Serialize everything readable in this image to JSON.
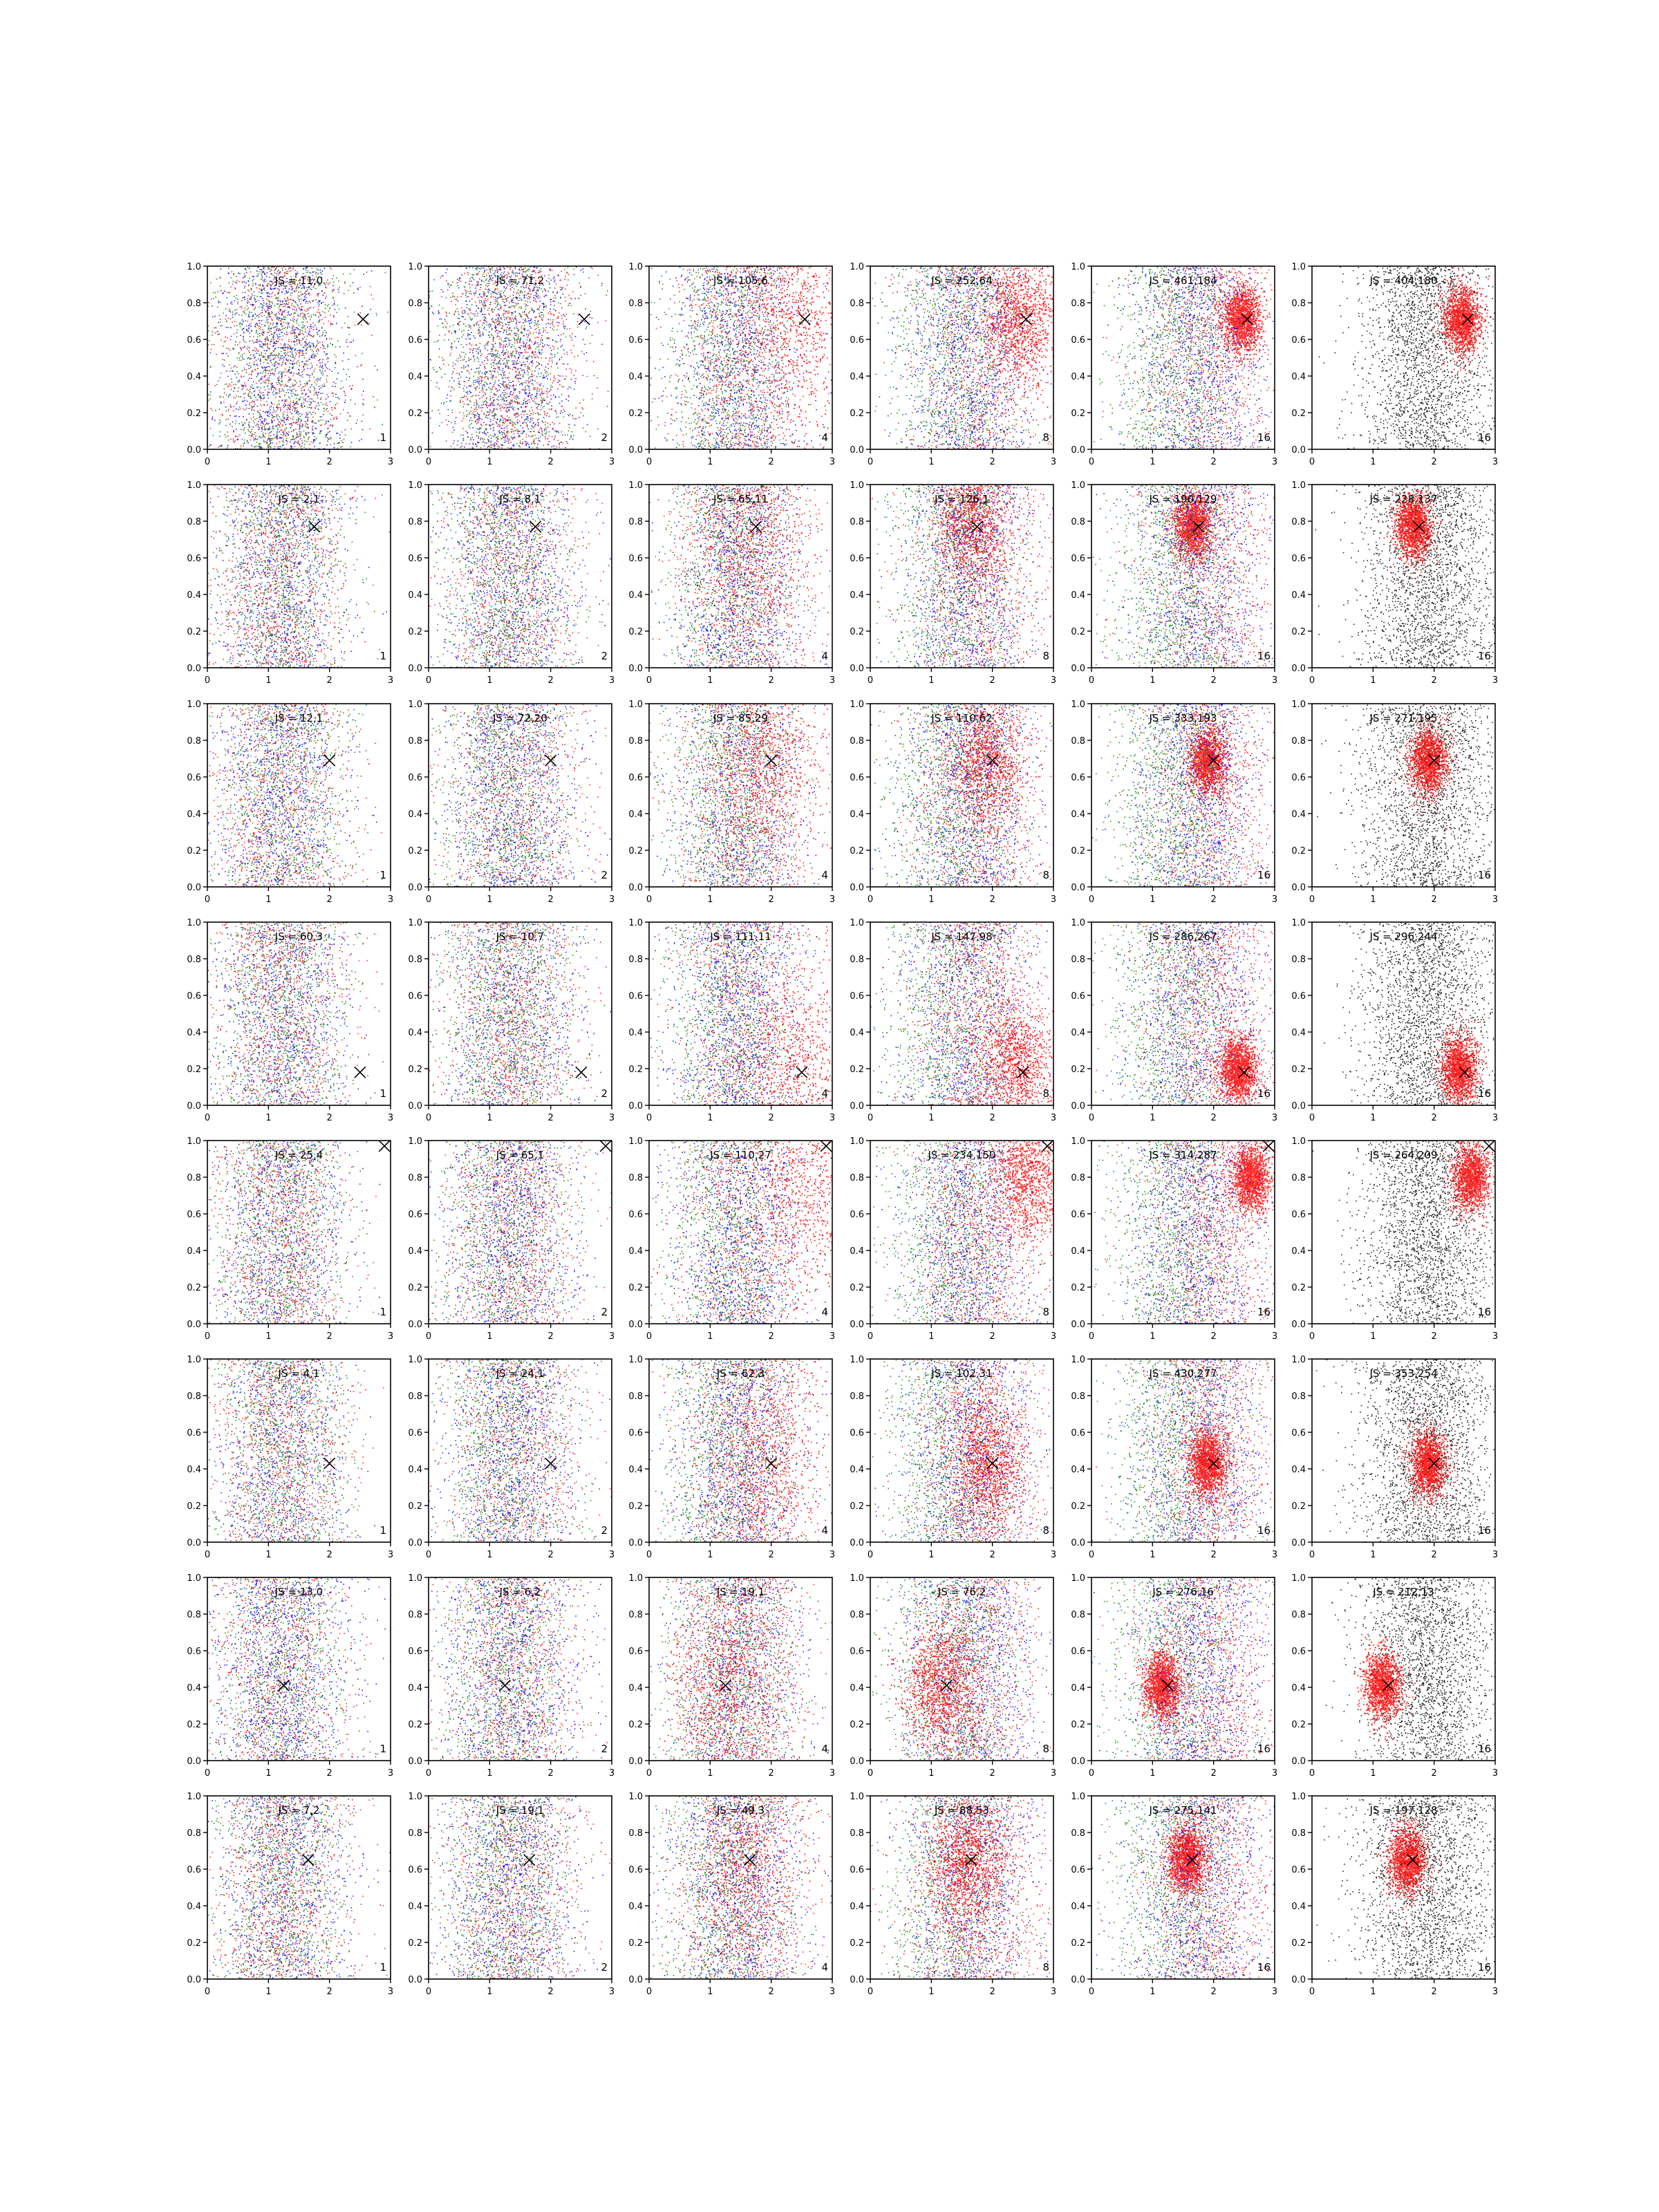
{
  "chart_data": {
    "type": "scatter",
    "layout": {
      "rows": 8,
      "cols": 6
    },
    "x_ticks": [
      "0",
      "1",
      "2",
      "3"
    ],
    "y_ticks": [
      "0.0",
      "0.2",
      "0.4",
      "0.6",
      "0.8",
      "1.0"
    ],
    "xlim": [
      0,
      3
    ],
    "ylim": [
      0,
      1
    ],
    "grid": false,
    "point_colors": {
      "red": "#ff0000",
      "blue": "#0000ff",
      "green": "#008000",
      "black": "#000000"
    },
    "panel_labels": [
      "1",
      "2",
      "4",
      "8",
      "16",
      "16"
    ],
    "rows": [
      {
        "marker": [
          2.55,
          0.71
        ],
        "js": [
          "JS = 11,0",
          "JS = 71,2",
          "JS = 105,6",
          "JS = 252,64",
          "JS = 461,184",
          "JS = 404,180"
        ]
      },
      {
        "marker": [
          1.75,
          0.77
        ],
        "js": [
          "JS = 2,1",
          "JS = 8,1",
          "JS = 65,11",
          "JS = 126,1",
          "JS = 190,129",
          "JS = 228,137"
        ]
      },
      {
        "marker": [
          2.0,
          0.69
        ],
        "js": [
          "JS = 12,1",
          "JS = 72,20",
          "JS = 85,29",
          "JS = 110,62",
          "JS = 333,193",
          "JS = 271,195"
        ]
      },
      {
        "marker": [
          2.5,
          0.18
        ],
        "js": [
          "JS = 60,3",
          "JS = 10,7",
          "JS = 111,11",
          "JS = 147,98",
          "JS = 286,267",
          "JS = 296,244"
        ]
      },
      {
        "marker": [
          2.9,
          0.97
        ],
        "js": [
          "JS = 25,4",
          "JS = 65,1",
          "JS = 110,27",
          "JS = 234,150",
          "JS = 314,287",
          "JS = 264,209"
        ]
      },
      {
        "marker": [
          2.0,
          0.43
        ],
        "js": [
          "JS = 4,1",
          "JS = 24,1",
          "JS = 62,3",
          "JS = 102,31",
          "JS = 430,277",
          "JS = 353,254"
        ]
      },
      {
        "marker": [
          1.25,
          0.41
        ],
        "js": [
          "JS = 13,0",
          "JS = 6,2",
          "JS = 19,1",
          "JS = 76,2",
          "JS = 276,16",
          "JS = 212,13"
        ]
      },
      {
        "marker": [
          1.65,
          0.65
        ],
        "js": [
          "JS = 7,2",
          "JS = 19,1",
          "JS = 49,3",
          "JS = 88,53",
          "JS = 275,141",
          "JS = 197,128"
        ]
      }
    ]
  }
}
